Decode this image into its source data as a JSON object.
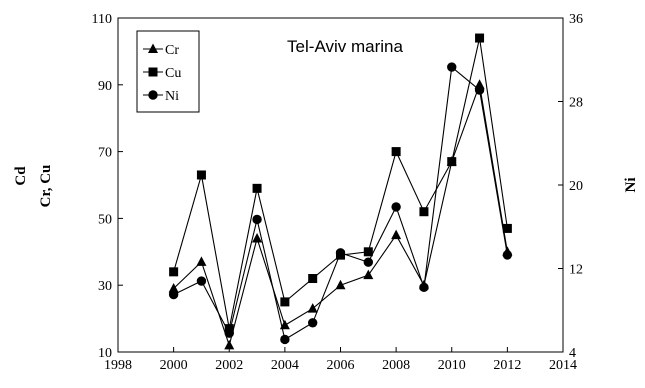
{
  "chart_data": {
    "type": "line",
    "title": "Tel-Aviv marina",
    "left_axis_labels": [
      "Cd",
      "Cr, Cu"
    ],
    "right_axis_label": "Ni",
    "x_ticks": [
      1998,
      2000,
      2002,
      2004,
      2006,
      2008,
      2010,
      2012,
      2014
    ],
    "xlim": [
      1998,
      2014
    ],
    "y_left_ticks": [
      10,
      30,
      50,
      70,
      90,
      110
    ],
    "ylim_left": [
      10,
      110
    ],
    "y_right_ticks": [
      4,
      12,
      20,
      28,
      36
    ],
    "ylim_right": [
      4,
      36
    ],
    "legend_position": "top-left",
    "grid": false,
    "series": [
      {
        "name": "Cr",
        "marker": "triangle",
        "axis": "left",
        "x": [
          2000,
          2001,
          2002,
          2003,
          2004,
          2005,
          2006,
          2007,
          2008,
          2009,
          2010,
          2011,
          2012
        ],
        "values": [
          29,
          37,
          12,
          44,
          18,
          23,
          30,
          33,
          45,
          30,
          67,
          90,
          40
        ]
      },
      {
        "name": "Cu",
        "marker": "square",
        "axis": "left",
        "x": [
          2000,
          2001,
          2002,
          2003,
          2004,
          2005,
          2006,
          2007,
          2008,
          2009,
          2010,
          2011,
          2012
        ],
        "values": [
          34,
          63,
          17,
          59,
          25,
          32,
          39,
          40,
          70,
          52,
          67,
          104,
          47
        ]
      },
      {
        "name": "Ni",
        "marker": "circle",
        "axis": "right",
        "x": [
          2000,
          2001,
          2002,
          2003,
          2004,
          2005,
          2006,
          2007,
          2008,
          2009,
          2010,
          2011,
          2012
        ],
        "values": [
          9.5,
          10.8,
          5.8,
          16.7,
          5.2,
          6.8,
          13.5,
          12.6,
          17.9,
          10.2,
          31.3,
          29.1,
          13.3
        ]
      }
    ]
  }
}
